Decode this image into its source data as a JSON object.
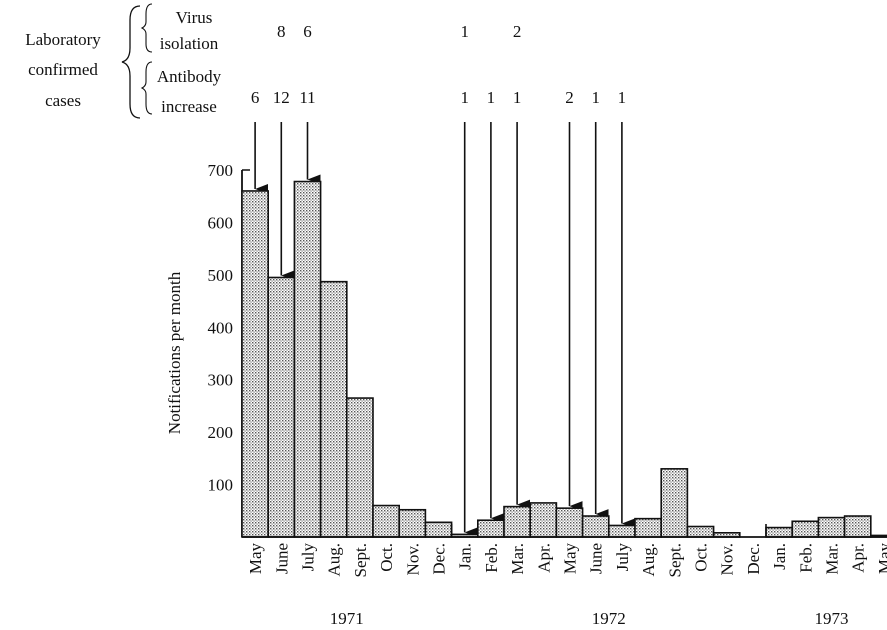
{
  "chart_data": {
    "type": "bar",
    "title": "",
    "xlabel": "",
    "ylabel": "Notifications per month",
    "ylim": [
      0,
      700
    ],
    "yticks": [
      "100",
      "200",
      "300",
      "400",
      "500",
      "600",
      "700"
    ],
    "grid": false,
    "bar_fill": "stippled",
    "categories": [
      "May",
      "June",
      "July",
      "Aug.",
      "Sept.",
      "Oct.",
      "Nov.",
      "Dec.",
      "Jan.",
      "Feb.",
      "Mar.",
      "Apr.",
      "May",
      "June",
      "July",
      "Aug.",
      "Sept.",
      "Oct.",
      "Nov.",
      "Dec.",
      "Jan.",
      "Feb.",
      "Mar.",
      "Apr.",
      "May"
    ],
    "values": [
      660,
      495,
      678,
      487,
      265,
      60,
      52,
      28,
      5,
      32,
      58,
      65,
      55,
      40,
      22,
      35,
      130,
      20,
      8,
      0,
      18,
      30,
      37,
      40,
      3
    ],
    "years": [
      {
        "label": "1971",
        "from": 0,
        "to": 7
      },
      {
        "label": "1972",
        "from": 8,
        "to": 19
      },
      {
        "label": "1973",
        "from": 20,
        "to": 24
      }
    ]
  },
  "header": {
    "main_label": [
      "Laboratory",
      "confirmed",
      "cases"
    ],
    "virus_label": [
      "Virus",
      "isolation"
    ],
    "antibody_label": [
      "Antibody",
      "increase"
    ]
  },
  "virus_isolation": [
    {
      "index": 1,
      "value": "8"
    },
    {
      "index": 2,
      "value": "6"
    },
    {
      "index": 8,
      "value": "1"
    },
    {
      "index": 10,
      "value": "2"
    }
  ],
  "antibody_increase": [
    {
      "index": 0,
      "value": "6"
    },
    {
      "index": 1,
      "value": "12"
    },
    {
      "index": 2,
      "value": "11"
    },
    {
      "index": 8,
      "value": "1"
    },
    {
      "index": 9,
      "value": "1"
    },
    {
      "index": 10,
      "value": "1"
    },
    {
      "index": 12,
      "value": "2"
    },
    {
      "index": 13,
      "value": "1"
    },
    {
      "index": 14,
      "value": "1"
    }
  ],
  "arrows": [
    0,
    1,
    2,
    8,
    9,
    10,
    12,
    13,
    14
  ]
}
